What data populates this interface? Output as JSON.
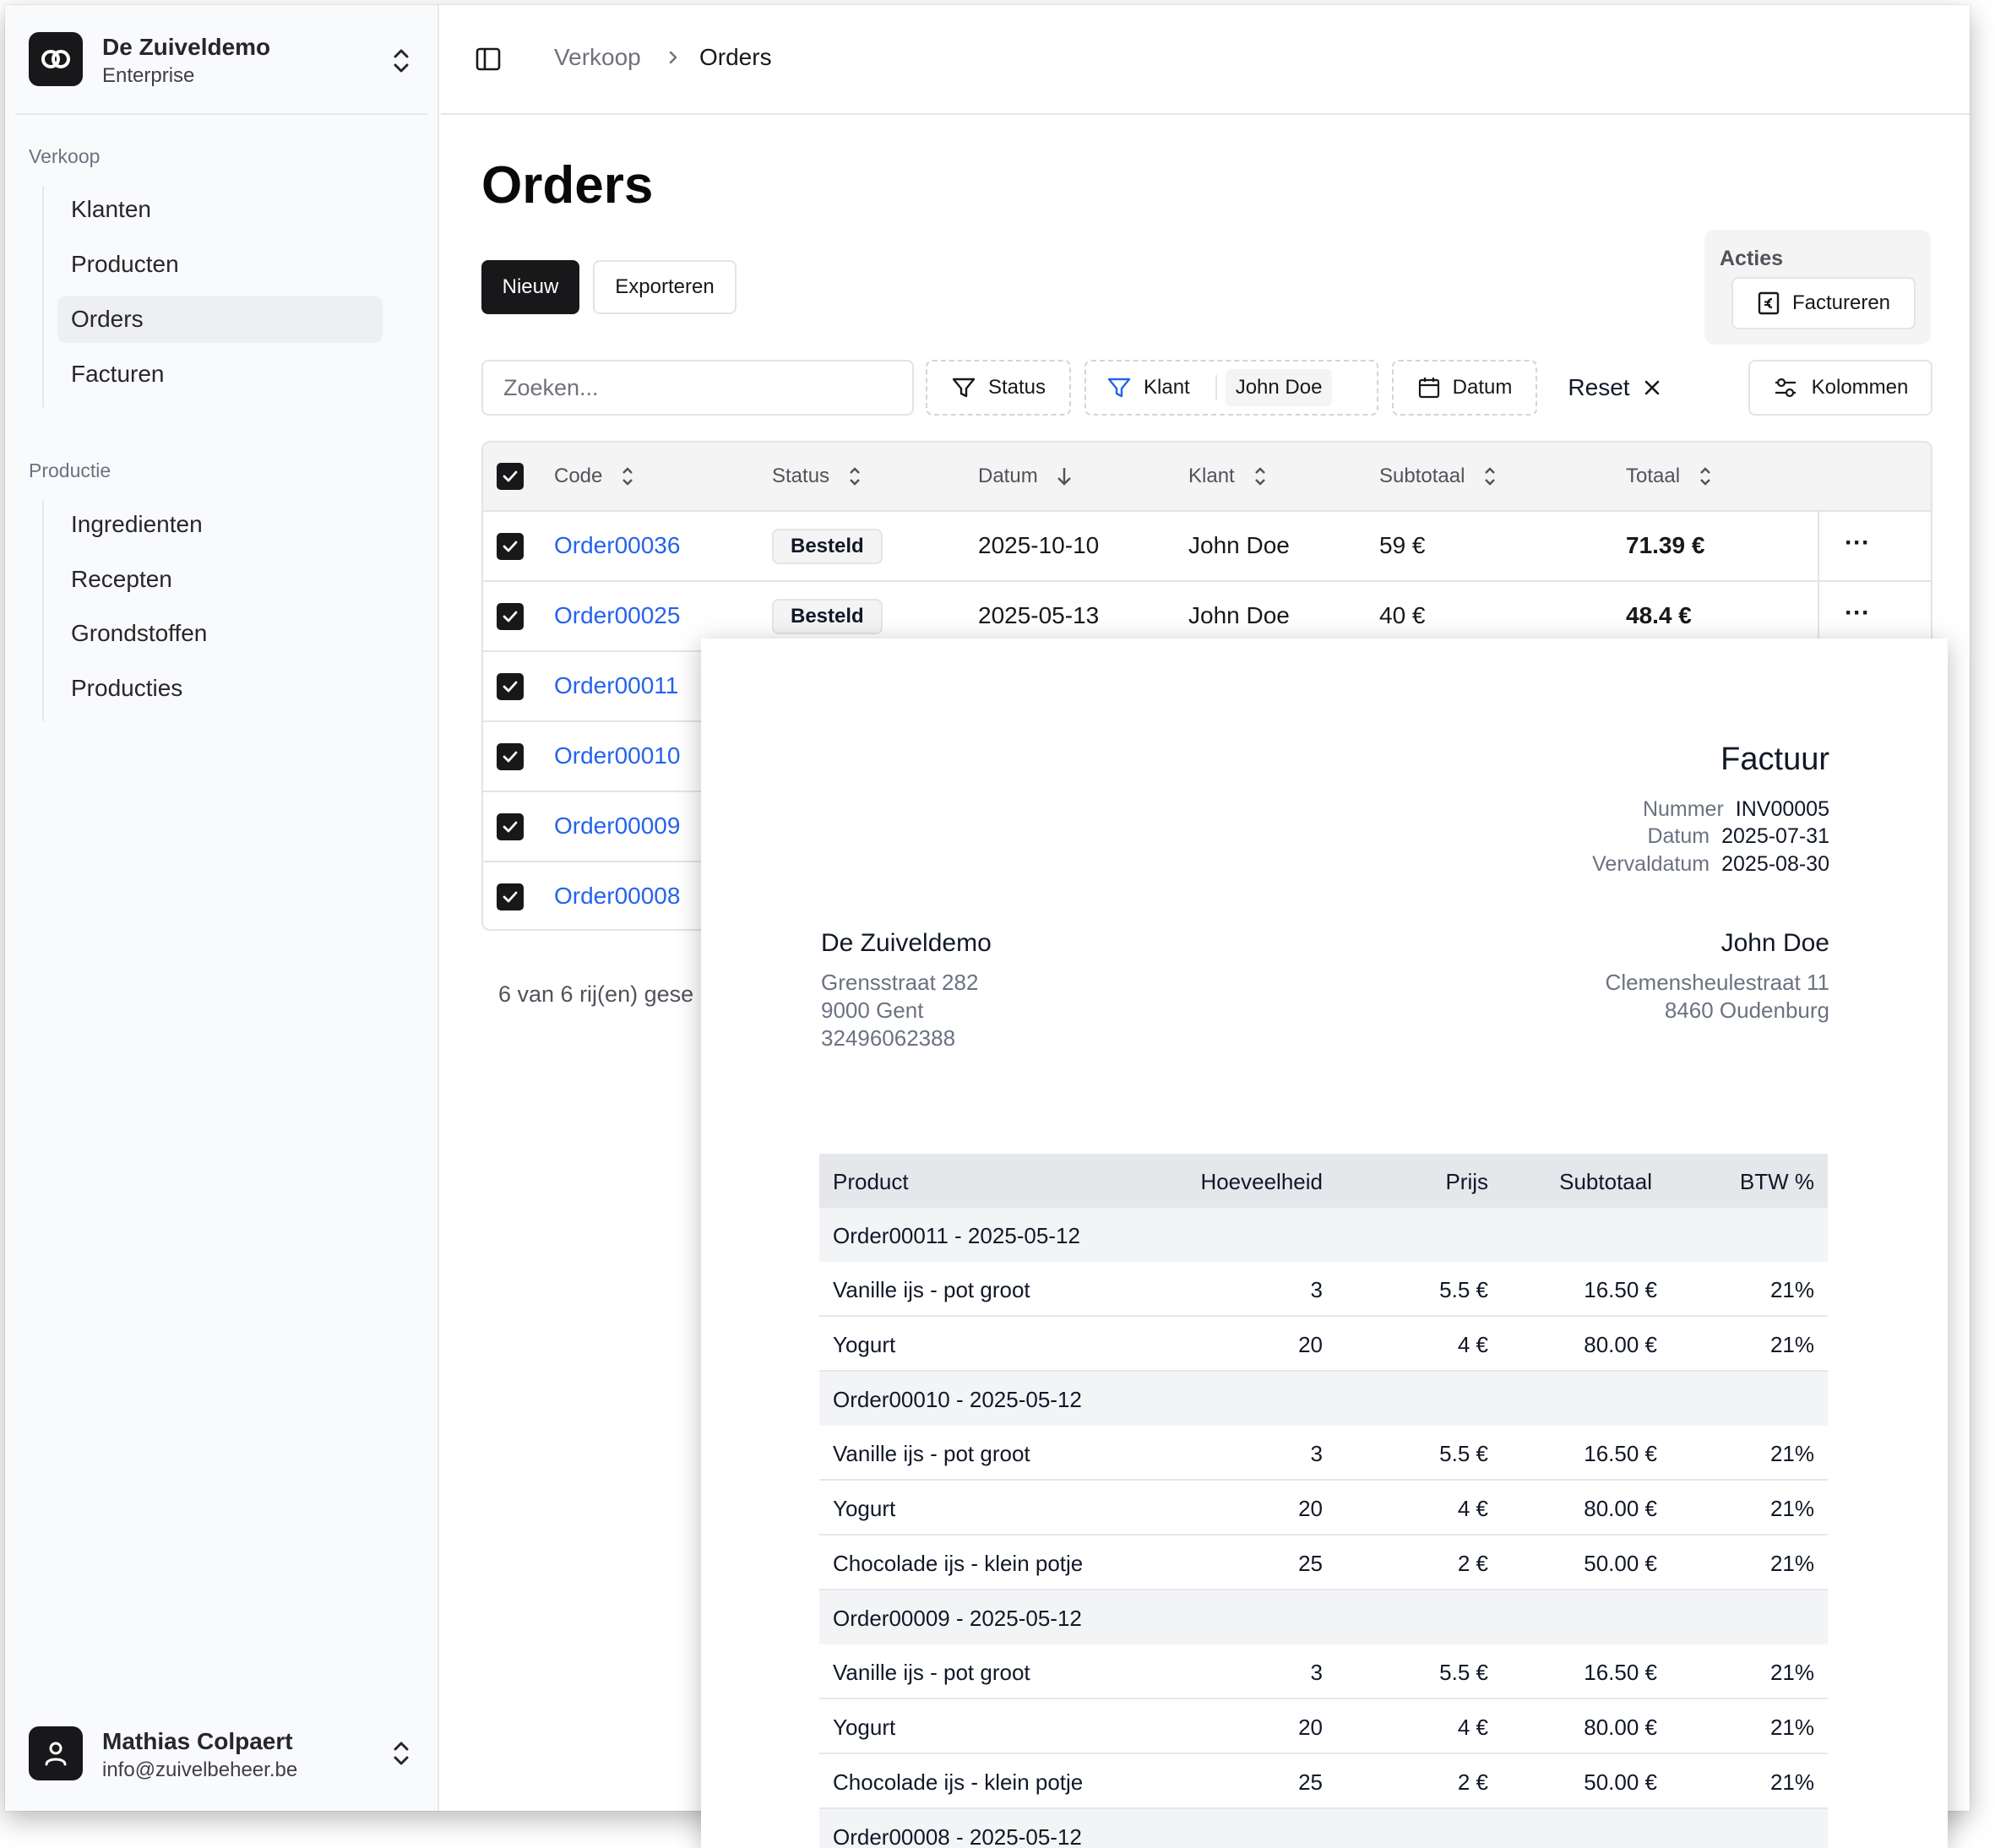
{
  "team": {
    "name": "De Zuiveldemo",
    "plan": "Enterprise"
  },
  "sidebar": {
    "groups": [
      {
        "label": "Verkoop",
        "items": [
          "Klanten",
          "Producten",
          "Orders",
          "Facturen"
        ]
      },
      {
        "label": "Productie",
        "items": [
          "Ingredienten",
          "Recepten",
          "Grondstoffen",
          "Producties"
        ]
      }
    ],
    "active_item": "Orders"
  },
  "user": {
    "name": "Mathias Colpaert",
    "email": "info@zuivelbeheer.be"
  },
  "breadcrumb": {
    "parent": "Verkoop",
    "current": "Orders"
  },
  "page": {
    "title": "Orders"
  },
  "toolbar": {
    "new_label": "Nieuw",
    "export_label": "Exporteren",
    "actions_label": "Acties",
    "invoice_label": "Factureren",
    "search_placeholder": "Zoeken...",
    "filter_status": "Status",
    "filter_customer": "Klant",
    "filter_customer_value": "John Doe",
    "filter_date": "Datum",
    "reset_label": "Reset",
    "columns_label": "Kolommen"
  },
  "table": {
    "headers": [
      "Code",
      "Status",
      "Datum",
      "Klant",
      "Subtotaal",
      "Totaal"
    ],
    "rows": [
      {
        "code": "Order00036",
        "status": "Besteld",
        "date": "2025-10-10",
        "customer": "John Doe",
        "subtotal": "59 €",
        "total": "71.39 €"
      },
      {
        "code": "Order00025",
        "status": "Besteld",
        "date": "2025-05-13",
        "customer": "John Doe",
        "subtotal": "40 €",
        "total": "48.4 €"
      },
      {
        "code": "Order00011"
      },
      {
        "code": "Order00010"
      },
      {
        "code": "Order00009"
      },
      {
        "code": "Order00008"
      }
    ],
    "footer": "6 van 6 rij(en) gese"
  },
  "invoice": {
    "title": "Factuur",
    "meta": [
      {
        "label": "Nummer",
        "value": "INV00005"
      },
      {
        "label": "Datum",
        "value": "2025-07-31"
      },
      {
        "label": "Vervaldatum",
        "value": "2025-08-30"
      }
    ],
    "seller": {
      "name": "De Zuiveldemo",
      "lines": [
        "Grensstraat 282",
        "9000 Gent",
        "32496062388"
      ]
    },
    "buyer": {
      "name": "John Doe",
      "lines": [
        "Clemensheulestraat 11",
        "8460 Oudenburg"
      ]
    },
    "columns": [
      "Product",
      "Hoeveelheid",
      "Prijs",
      "Subtotaal",
      "BTW %"
    ],
    "groups": [
      {
        "label": "Order00011 - 2025-05-12",
        "items": [
          {
            "product": "Vanille ijs - pot groot",
            "qty": "3",
            "price": "5.5 €",
            "subtotal": "16.50 €",
            "vat": "21%"
          },
          {
            "product": "Yogurt",
            "qty": "20",
            "price": "4 €",
            "subtotal": "80.00 €",
            "vat": "21%"
          }
        ]
      },
      {
        "label": "Order00010 - 2025-05-12",
        "items": [
          {
            "product": "Vanille ijs - pot groot",
            "qty": "3",
            "price": "5.5 €",
            "subtotal": "16.50 €",
            "vat": "21%"
          },
          {
            "product": "Yogurt",
            "qty": "20",
            "price": "4 €",
            "subtotal": "80.00 €",
            "vat": "21%"
          },
          {
            "product": "Chocolade ijs - klein potje",
            "qty": "25",
            "price": "2 €",
            "subtotal": "50.00 €",
            "vat": "21%"
          }
        ]
      },
      {
        "label": "Order00009 - 2025-05-12",
        "items": [
          {
            "product": "Vanille ijs - pot groot",
            "qty": "3",
            "price": "5.5 €",
            "subtotal": "16.50 €",
            "vat": "21%"
          },
          {
            "product": "Yogurt",
            "qty": "20",
            "price": "4 €",
            "subtotal": "80.00 €",
            "vat": "21%"
          },
          {
            "product": "Chocolade ijs - klein potje",
            "qty": "25",
            "price": "2 €",
            "subtotal": "50.00 €",
            "vat": "21%"
          }
        ]
      },
      {
        "label": "Order00008 - 2025-05-12",
        "items": []
      }
    ]
  }
}
